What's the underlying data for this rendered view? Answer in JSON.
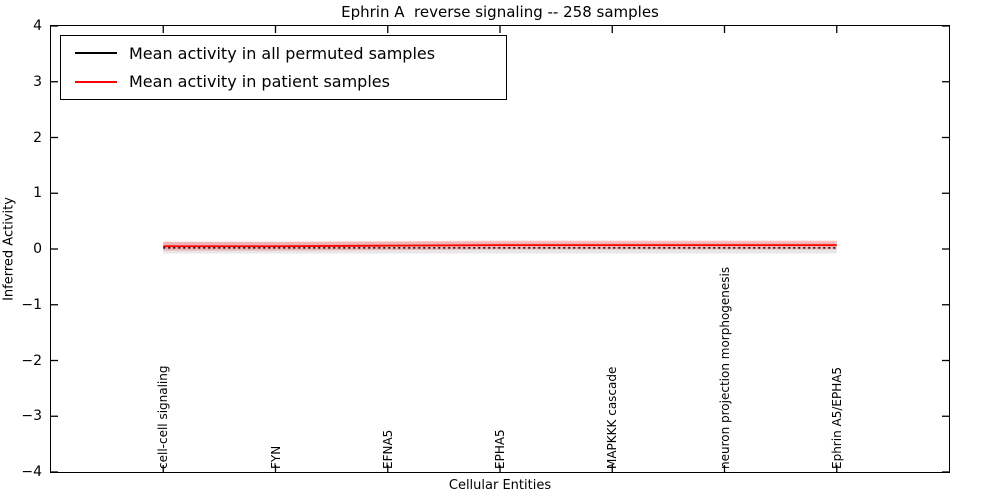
{
  "figure": {
    "background": "#ffffff"
  },
  "chart_data": {
    "type": "line",
    "title": "Ephrin A  reverse signaling -- 258 samples",
    "xlabel": "Cellular Entities",
    "ylabel": "Inferred Activity",
    "ylim": [
      -4,
      4
    ],
    "xlim_categories": [
      -1,
      7
    ],
    "yticks": [
      -4,
      -3,
      -2,
      -1,
      0,
      1,
      2,
      3,
      4
    ],
    "grid": false,
    "legend_position": "upper left",
    "categories": [
      "cell-cell signaling",
      "FYN",
      "EFNA5",
      "EPHA5",
      "MAPKKK cascade",
      "neuron projection morphogenesis",
      "Ephrin A5/EPHA5"
    ],
    "series": [
      {
        "name": "Mean activity in all permuted samples",
        "color": "#000000",
        "line_style": "dashed",
        "values": [
          0.02,
          0.02,
          0.02,
          0.02,
          0.02,
          0.02,
          0.02
        ],
        "band_halfwidth": 0.1,
        "band_color": "rgba(128,128,128,0.18)"
      },
      {
        "name": "Mean activity in patient samples",
        "color": "#ff0000",
        "line_style": "solid",
        "values": [
          0.05,
          0.05,
          0.06,
          0.07,
          0.07,
          0.07,
          0.07
        ],
        "band_halfwidth": 0.08,
        "band_color": "rgba(255,0,0,0.22)"
      }
    ]
  }
}
